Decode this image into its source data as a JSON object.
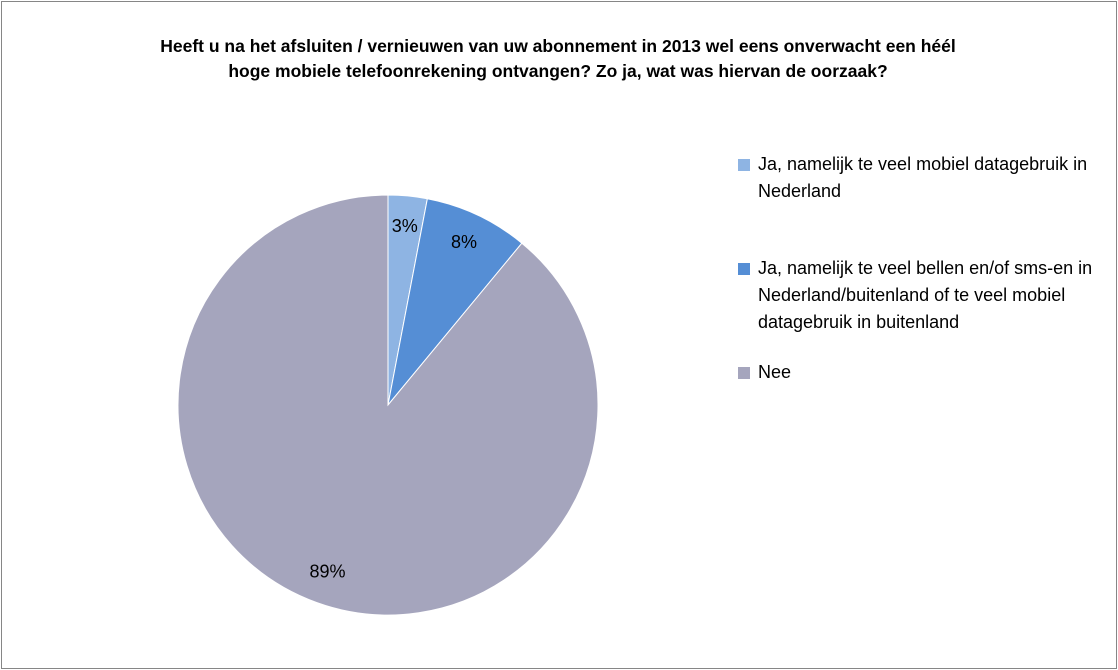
{
  "chart_data": {
    "type": "pie",
    "title": "Heeft u na het afsluiten / vernieuwen van uw abonnement in 2013 wel eens onverwacht een héél hoge mobiele telefoonrekening ontvangen? Zo ja, wat was hiervan de oorzaak?",
    "categories": [
      "Ja, namelijk te veel mobiel datagebruik in Nederland",
      "Ja, namelijk te veel bellen en/of sms-en in Nederland/buitenland of te veel mobiel datagebruik in buitenland",
      "Nee"
    ],
    "values": [
      3,
      8,
      89
    ],
    "value_labels": [
      "3%",
      "8%",
      "89%"
    ],
    "colors": [
      "#8eb4e3",
      "#558ed5",
      "#a5a5bd"
    ],
    "legend": "right"
  }
}
